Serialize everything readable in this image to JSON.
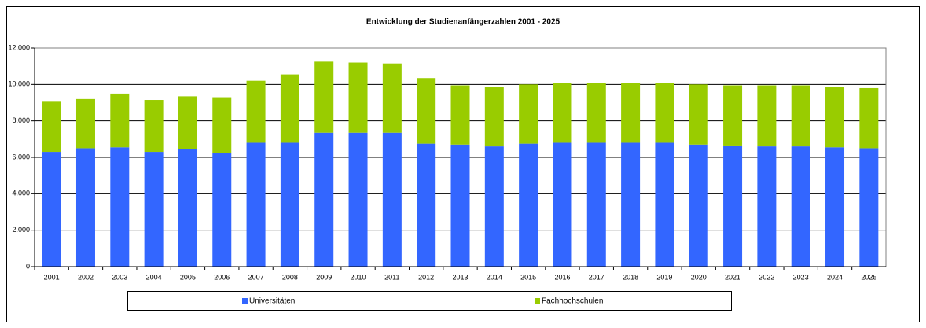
{
  "chart_data": {
    "type": "stacked_bar",
    "title": "Entwicklung der Studienanfängerzahlen 2001 - 2025",
    "categories": [
      "2001",
      "2002",
      "2003",
      "2004",
      "2005",
      "2006",
      "2007",
      "2008",
      "2009",
      "2010",
      "2011",
      "2012",
      "2013",
      "2014",
      "2015",
      "2016",
      "2017",
      "2018",
      "2019",
      "2020",
      "2021",
      "2022",
      "2023",
      "2024",
      "2025"
    ],
    "series": [
      {
        "name": "Universitäten",
        "color": "#3366ff",
        "values": [
          6300,
          6500,
          6550,
          6300,
          6450,
          6250,
          6800,
          6800,
          7350,
          7350,
          7350,
          6750,
          6700,
          6600,
          6750,
          6800,
          6800,
          6800,
          6800,
          6700,
          6650,
          6600,
          6600,
          6550,
          6500
        ]
      },
      {
        "name": "Fachhochschulen",
        "color": "#99cc00",
        "values": [
          2750,
          2700,
          2950,
          2850,
          2900,
          3050,
          3400,
          3750,
          3900,
          3850,
          3800,
          3600,
          3250,
          3250,
          3250,
          3300,
          3300,
          3300,
          3300,
          3300,
          3300,
          3350,
          3350,
          3300,
          3300
        ]
      }
    ],
    "ylim": [
      0,
      12000
    ],
    "yticks": [
      0,
      {
        "value": 2000,
        "label": "2.000"
      },
      {
        "value": 4000,
        "label": "4.000"
      },
      {
        "value": 6000,
        "label": "6.000"
      },
      {
        "value": 8000,
        "label": "8.000"
      },
      {
        "value": 10000,
        "label": "10.000"
      },
      {
        "value": 12000,
        "label": "12.000"
      }
    ],
    "grid": true,
    "legend": "bottom"
  }
}
